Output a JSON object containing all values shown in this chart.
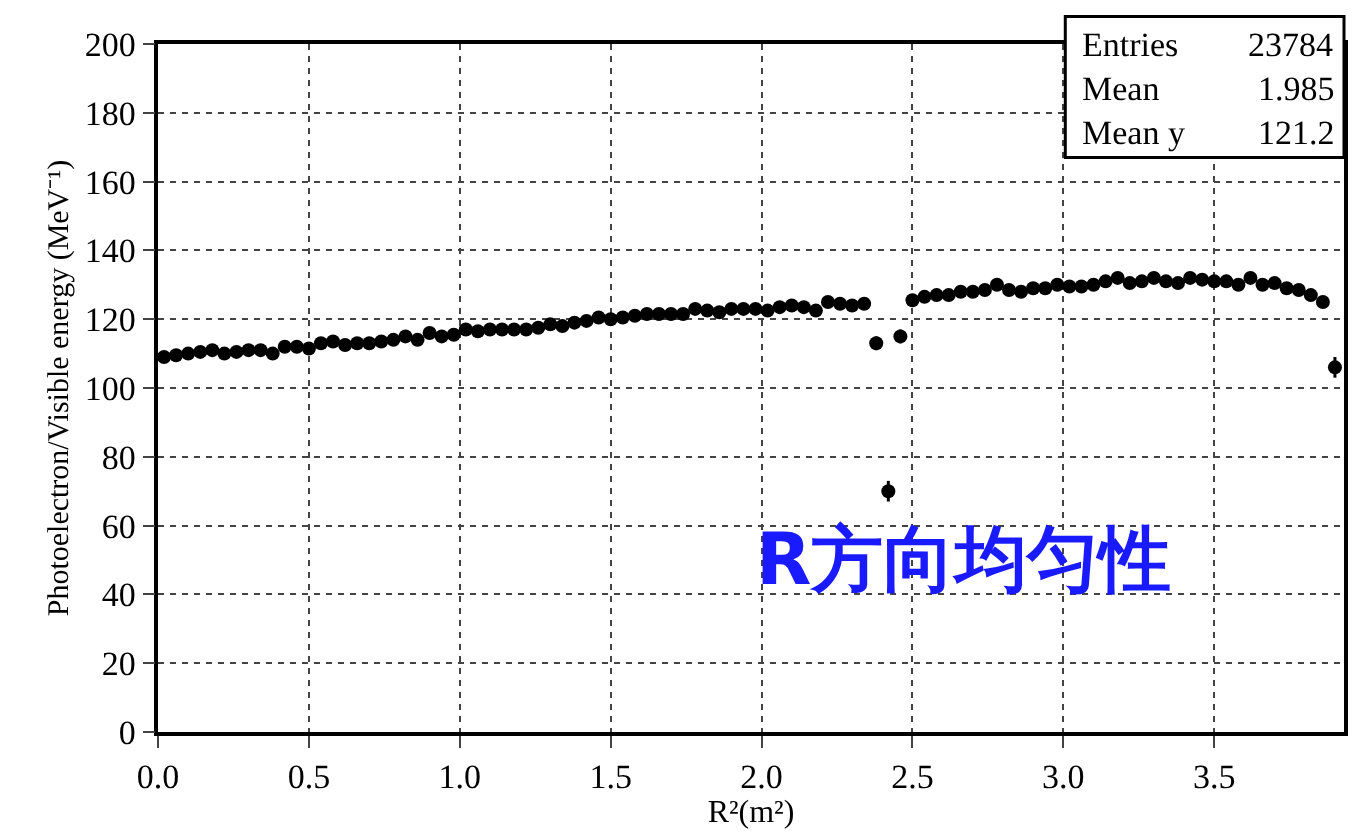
{
  "chart_data": {
    "type": "scatter",
    "xlabel": "R²(m²)",
    "ylabel": "Photoelectron/Visible energy (MeV⁻¹)",
    "annotations": [
      "Entries",
      "23784",
      "Mean",
      "1.985",
      "Mean y",
      "121.2",
      "R方向均匀性"
    ],
    "x": [
      0.02,
      0.06,
      0.1,
      0.14,
      0.18,
      0.22,
      0.26,
      0.3,
      0.34,
      0.38,
      0.42,
      0.46,
      0.5,
      0.54,
      0.58,
      0.62,
      0.66,
      0.7,
      0.74,
      0.78,
      0.82,
      0.86,
      0.9,
      0.94,
      0.98,
      1.02,
      1.06,
      1.1,
      1.14,
      1.18,
      1.22,
      1.26,
      1.3,
      1.34,
      1.38,
      1.42,
      1.46,
      1.5,
      1.54,
      1.58,
      1.62,
      1.66,
      1.7,
      1.74,
      1.78,
      1.82,
      1.86,
      1.9,
      1.94,
      1.98,
      2.02,
      2.06,
      2.1,
      2.14,
      2.18,
      2.22,
      2.26,
      2.3,
      2.34,
      2.38,
      2.42,
      2.46,
      2.5,
      2.54,
      2.58,
      2.62,
      2.66,
      2.7,
      2.74,
      2.78,
      2.82,
      2.86,
      2.9,
      2.94,
      2.98,
      3.02,
      3.06,
      3.1,
      3.14,
      3.18,
      3.22,
      3.26,
      3.3,
      3.34,
      3.38,
      3.42,
      3.46,
      3.5,
      3.54,
      3.58,
      3.62,
      3.66,
      3.7,
      3.74,
      3.78,
      3.82,
      3.86,
      3.9
    ],
    "series": [
      {
        "color": "#000000",
        "values": [
          109,
          109.5,
          110,
          110.5,
          111,
          110,
          110.5,
          111,
          111,
          110,
          112,
          112,
          111.5,
          113,
          113.5,
          112.5,
          113,
          113,
          113.5,
          114,
          115,
          114,
          116,
          115,
          115.5,
          117,
          116.5,
          117,
          117,
          117,
          117,
          117.5,
          118.5,
          118,
          119,
          119.5,
          120.5,
          120,
          120.5,
          121,
          121.5,
          121.5,
          121.5,
          121.5,
          123,
          122.5,
          122,
          123,
          123,
          123,
          122.5,
          123.5,
          124,
          123.5,
          122.5,
          125,
          124.5,
          124,
          124.5,
          113,
          70,
          115,
          125.5,
          126.5,
          127,
          127,
          128,
          128,
          128.5,
          130,
          128.5,
          128,
          129,
          129,
          130,
          129.5,
          129.5,
          130,
          131,
          132,
          130.5,
          131,
          132,
          131,
          130.5,
          132,
          131.5,
          131,
          131,
          130,
          132,
          130,
          130.5,
          129,
          128.5,
          127,
          125,
          106
        ],
        "errors": [
          null,
          null,
          null,
          null,
          null,
          null,
          null,
          null,
          null,
          null,
          null,
          null,
          null,
          null,
          null,
          null,
          null,
          null,
          null,
          null,
          null,
          null,
          null,
          null,
          null,
          null,
          null,
          null,
          null,
          null,
          null,
          null,
          null,
          null,
          null,
          null,
          null,
          null,
          null,
          null,
          null,
          null,
          null,
          null,
          null,
          null,
          null,
          null,
          null,
          null,
          null,
          null,
          null,
          null,
          null,
          null,
          null,
          null,
          null,
          2,
          3,
          2,
          null,
          null,
          null,
          null,
          null,
          null,
          null,
          null,
          null,
          null,
          null,
          null,
          null,
          null,
          null,
          null,
          null,
          null,
          null,
          null,
          null,
          null,
          null,
          null,
          null,
          null,
          null,
          null,
          null,
          null,
          null,
          null,
          null,
          null,
          null,
          3
        ]
      }
    ],
    "xlim": [
      0,
      3.93
    ],
    "xticks": [
      {
        "value": 0,
        "label": "0.0"
      },
      {
        "value": 0.5,
        "label": "0.5"
      },
      {
        "value": 1,
        "label": "1.0"
      },
      {
        "value": 1.5,
        "label": "1.5"
      },
      {
        "value": 2,
        "label": "2.0"
      },
      {
        "value": 2.5,
        "label": "2.5"
      },
      {
        "value": 3,
        "label": "3.0"
      },
      {
        "value": 3.5,
        "label": "3.5"
      }
    ],
    "ylim": [
      0,
      200
    ],
    "yticks": [
      0,
      20,
      40,
      60,
      80,
      100,
      120,
      140,
      160,
      180,
      200
    ],
    "grid": true,
    "marker": "circle"
  }
}
